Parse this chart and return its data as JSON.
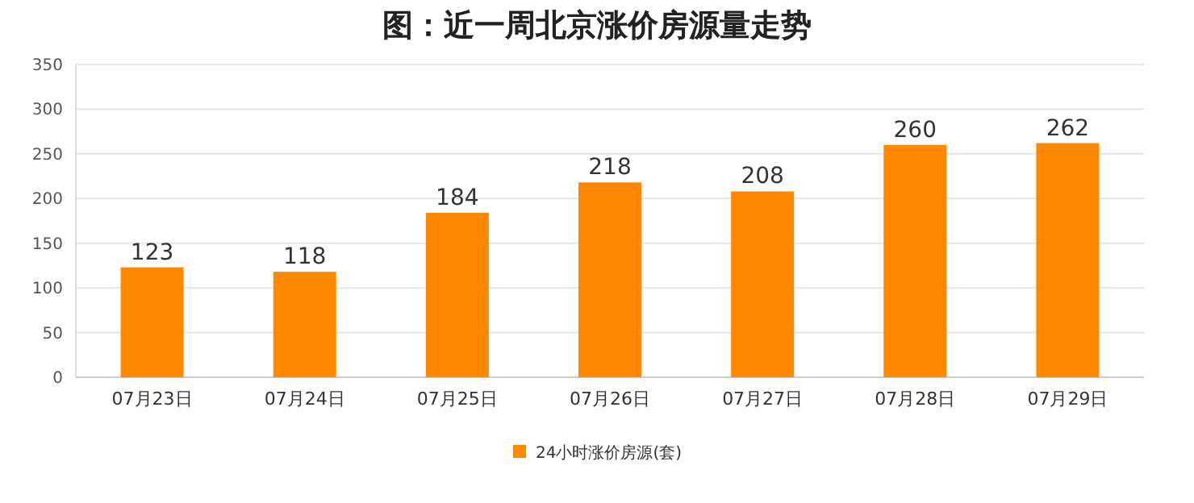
{
  "chart_data": {
    "type": "bar",
    "title": "图：近一周北京涨价房源量走势",
    "categories": [
      "07月23日",
      "07月24日",
      "07月25日",
      "07月26日",
      "07月27日",
      "07月28日",
      "07月29日"
    ],
    "series": [
      {
        "name": "24小时涨价房源(套)",
        "color": "#ff8800",
        "values": [
          123,
          118,
          184,
          218,
          208,
          260,
          262
        ]
      }
    ],
    "ylim": [
      0,
      350
    ],
    "yticks": [
      0,
      50,
      100,
      150,
      200,
      250,
      300,
      350
    ],
    "grid": "y",
    "legend": "bottom",
    "data_labels": true
  }
}
